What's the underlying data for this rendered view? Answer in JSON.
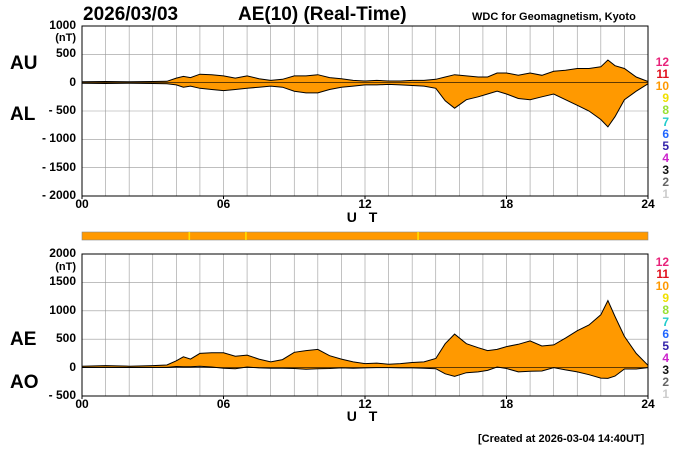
{
  "header": {
    "date": "2026/03/03",
    "title": "AE(10) (Real-Time)",
    "org": "WDC for Geomagnetism, Kyoto"
  },
  "footer": "[Created at 2026-03-04 14:40UT]",
  "station_legend": [
    "12",
    "11",
    "10",
    "9",
    "8",
    "7",
    "6",
    "5",
    "4",
    "3",
    "2",
    "1"
  ],
  "legend_colors": [
    "#e8227a",
    "#e0101c",
    "#ff9900",
    "#f0e000",
    "#99e033",
    "#22cccc",
    "#2266ff",
    "#3322aa",
    "#cc22cc",
    "#111111",
    "#666666",
    "#cccccc"
  ],
  "colors": {
    "fill": "#ff9900",
    "line": "#000000",
    "grid": "#999999"
  },
  "chart_data": [
    {
      "type": "area",
      "name": "AU/AL",
      "side_labels": [
        "AU",
        "AL"
      ],
      "unit": "(nT)",
      "xlabel": "U T",
      "x_ticks": [
        "00",
        "06",
        "12",
        "18",
        "24"
      ],
      "xlim": [
        0,
        24
      ],
      "y_ticks": [
        "1000",
        "500",
        "0",
        "- 500",
        "- 1000",
        "- 1500",
        "- 2000"
      ],
      "ylim": [
        -2000,
        1000
      ],
      "grid": true,
      "x": [
        0,
        1,
        2,
        3,
        3.6,
        4,
        4.3,
        4.6,
        5,
        5.5,
        6,
        6.5,
        7,
        7.5,
        8,
        8.5,
        9,
        9.5,
        10,
        10.5,
        11,
        11.5,
        12,
        12.5,
        13,
        13.5,
        14,
        14.5,
        15,
        15.4,
        15.8,
        16.3,
        16.8,
        17.2,
        17.6,
        18,
        18.5,
        19,
        19.5,
        20,
        20.5,
        21,
        21.5,
        22,
        22.3,
        22.6,
        23,
        23.5,
        24
      ],
      "series": [
        {
          "name": "AU",
          "values": [
            15,
            20,
            15,
            20,
            25,
            80,
            110,
            90,
            150,
            140,
            120,
            80,
            120,
            70,
            40,
            60,
            120,
            120,
            140,
            90,
            70,
            40,
            30,
            40,
            30,
            30,
            40,
            40,
            60,
            100,
            140,
            120,
            100,
            100,
            170,
            170,
            130,
            170,
            130,
            200,
            220,
            250,
            250,
            280,
            400,
            300,
            250,
            100,
            20
          ]
        },
        {
          "name": "AL",
          "values": [
            -10,
            -15,
            -10,
            -15,
            -20,
            -40,
            -80,
            -60,
            -100,
            -120,
            -140,
            -120,
            -100,
            -80,
            -60,
            -80,
            -150,
            -180,
            -180,
            -120,
            -80,
            -60,
            -40,
            -40,
            -30,
            -40,
            -50,
            -60,
            -100,
            -320,
            -450,
            -300,
            -250,
            -200,
            -150,
            -200,
            -280,
            -300,
            -250,
            -200,
            -300,
            -400,
            -500,
            -650,
            -780,
            -600,
            -300,
            -150,
            -20
          ]
        }
      ]
    },
    {
      "type": "area",
      "name": "AE/AO",
      "side_labels": [
        "AE",
        "AO"
      ],
      "unit": "(nT)",
      "xlabel": "U T",
      "x_ticks": [
        "00",
        "06",
        "12",
        "18",
        "24"
      ],
      "xlim": [
        0,
        24
      ],
      "y_ticks": [
        "2000",
        "1500",
        "1000",
        "500",
        "0",
        "- 500"
      ],
      "ylim": [
        -500,
        2000
      ],
      "grid": true,
      "x": [
        0,
        1,
        2,
        3,
        3.6,
        4,
        4.3,
        4.6,
        5,
        5.5,
        6,
        6.5,
        7,
        7.5,
        8,
        8.5,
        9,
        9.5,
        10,
        10.5,
        11,
        11.5,
        12,
        12.5,
        13,
        13.5,
        14,
        14.5,
        15,
        15.4,
        15.8,
        16.3,
        16.8,
        17.2,
        17.6,
        18,
        18.5,
        19,
        19.5,
        20,
        20.5,
        21,
        21.5,
        22,
        22.3,
        22.6,
        23,
        23.5,
        24
      ],
      "series": [
        {
          "name": "AE",
          "values": [
            25,
            35,
            25,
            35,
            45,
            120,
            190,
            150,
            250,
            260,
            260,
            200,
            220,
            150,
            100,
            140,
            270,
            300,
            320,
            210,
            150,
            100,
            70,
            80,
            60,
            70,
            90,
            100,
            160,
            420,
            590,
            420,
            350,
            300,
            320,
            370,
            410,
            470,
            380,
            400,
            520,
            650,
            750,
            930,
            1180,
            900,
            550,
            250,
            40
          ]
        },
        {
          "name": "AO",
          "values": [
            2,
            3,
            2,
            3,
            3,
            20,
            15,
            15,
            25,
            10,
            -10,
            -20,
            10,
            -5,
            -10,
            -10,
            -15,
            -30,
            -20,
            -15,
            -5,
            -10,
            -5,
            0,
            0,
            -5,
            -5,
            -10,
            -20,
            -110,
            -155,
            -90,
            -75,
            -50,
            10,
            -15,
            -75,
            -65,
            -60,
            0,
            -40,
            -75,
            -125,
            -185,
            -190,
            -150,
            -25,
            -25,
            0
          ]
        }
      ]
    }
  ]
}
